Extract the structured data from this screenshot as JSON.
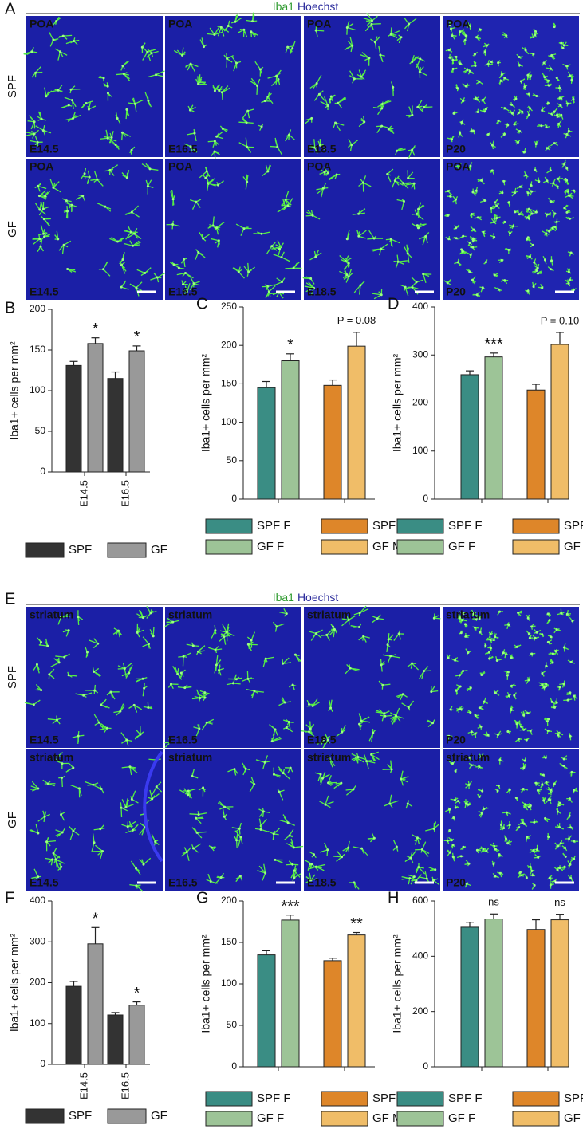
{
  "figure": {
    "image_panels": [
      {
        "letter": "A",
        "stain": [
          "Iba1",
          "Hoechst"
        ],
        "rows": [
          "SPF",
          "GF"
        ],
        "region": "POA",
        "ages": [
          "E14.5",
          "E16.5",
          "E18.5",
          "P20"
        ]
      },
      {
        "letter": "E",
        "stain": [
          "Iba1",
          "Hoechst"
        ],
        "rows": [
          "SPF",
          "GF"
        ],
        "region": "striatum",
        "ages": [
          "E14.5",
          "E16.5",
          "E18.5",
          "P20"
        ]
      }
    ]
  },
  "chart_data": [
    {
      "type": "bar",
      "letter": "B",
      "ylabel": "Iba1+ cells per mm²",
      "categories": [
        "E14.5",
        "E16.5"
      ],
      "series": [
        {
          "name": "SPF",
          "color": "#333333",
          "values": [
            131,
            115
          ],
          "error": [
            5,
            8
          ]
        },
        {
          "name": "GF",
          "color": "#999999",
          "values": [
            158,
            149
          ],
          "error": [
            7,
            6
          ],
          "annotations": [
            "*",
            "*"
          ]
        }
      ],
      "ylim": [
        0,
        200
      ],
      "yticks": [
        0,
        50,
        100,
        150,
        200
      ]
    },
    {
      "type": "bar",
      "letter": "C",
      "ylabel": "Iba1+ cells per mm²",
      "categories": [
        null,
        null
      ],
      "series": [
        {
          "name": "SPF F",
          "color": "#3a8d84",
          "values": [
            145,
            null
          ],
          "error": [
            8,
            null
          ]
        },
        {
          "name": "GF F",
          "color": "#9dc497",
          "values": [
            180,
            null
          ],
          "error": [
            9,
            null
          ],
          "annotations": [
            "*",
            null
          ]
        },
        {
          "name": "SPF M",
          "color": "#de8629",
          "values": [
            null,
            148
          ],
          "error": [
            null,
            7
          ]
        },
        {
          "name": "GF M",
          "color": "#f0bd68",
          "values": [
            null,
            199
          ],
          "error": [
            null,
            18
          ],
          "annotations": [
            null,
            "P = 0.08"
          ]
        }
      ],
      "ylim": [
        0,
        250
      ],
      "yticks": [
        0,
        50,
        100,
        150,
        200,
        250
      ]
    },
    {
      "type": "bar",
      "letter": "D",
      "ylabel": "Iba1+ cells per mm²",
      "categories": [
        null,
        null
      ],
      "series": [
        {
          "name": "SPF F",
          "color": "#3a8d84",
          "values": [
            259,
            null
          ],
          "error": [
            8,
            null
          ]
        },
        {
          "name": "GF F",
          "color": "#9dc497",
          "values": [
            296,
            null
          ],
          "error": [
            8,
            null
          ],
          "annotations": [
            "***",
            null
          ]
        },
        {
          "name": "SPF M",
          "color": "#de8629",
          "values": [
            null,
            227
          ],
          "error": [
            null,
            12
          ]
        },
        {
          "name": "GF M",
          "color": "#f0bd68",
          "values": [
            null,
            322
          ],
          "error": [
            null,
            25
          ],
          "annotations": [
            null,
            "P = 0.10"
          ]
        }
      ],
      "ylim": [
        0,
        400
      ],
      "yticks": [
        0,
        100,
        200,
        300,
        400
      ]
    },
    {
      "type": "bar",
      "letter": "F",
      "ylabel": "Iba1+ cells per mm²",
      "categories": [
        "E14.5",
        "E16.5"
      ],
      "series": [
        {
          "name": "SPF",
          "color": "#333333",
          "values": [
            191,
            121
          ],
          "error": [
            12,
            6
          ]
        },
        {
          "name": "GF",
          "color": "#999999",
          "values": [
            295,
            145
          ],
          "error": [
            40,
            8
          ],
          "annotations": [
            "*",
            "*"
          ]
        }
      ],
      "ylim": [
        0,
        400
      ],
      "yticks": [
        0,
        100,
        200,
        300,
        400
      ]
    },
    {
      "type": "bar",
      "letter": "G",
      "ylabel": "Iba1+ cells per mm²",
      "categories": [
        null,
        null
      ],
      "series": [
        {
          "name": "SPF F",
          "color": "#3a8d84",
          "values": [
            135,
            null
          ],
          "error": [
            5,
            null
          ]
        },
        {
          "name": "GF F",
          "color": "#9dc497",
          "values": [
            177,
            null
          ],
          "error": [
            6,
            null
          ],
          "annotations": [
            "***",
            null
          ]
        },
        {
          "name": "SPF M",
          "color": "#de8629",
          "values": [
            null,
            128
          ],
          "error": [
            null,
            3
          ]
        },
        {
          "name": "GF M",
          "color": "#f0bd68",
          "values": [
            null,
            159
          ],
          "error": [
            null,
            3
          ],
          "annotations": [
            null,
            "**"
          ]
        }
      ],
      "ylim": [
        0,
        200
      ],
      "yticks": [
        0,
        50,
        100,
        150,
        200
      ]
    },
    {
      "type": "bar",
      "letter": "H",
      "ylabel": "Iba1+ cells per mm²",
      "categories": [
        null,
        null
      ],
      "series": [
        {
          "name": "SPF F",
          "color": "#3a8d84",
          "values": [
            505,
            null
          ],
          "error": [
            18,
            null
          ]
        },
        {
          "name": "GF F",
          "color": "#9dc497",
          "values": [
            535,
            null
          ],
          "error": [
            18,
            null
          ],
          "annotations": [
            "ns",
            null
          ]
        },
        {
          "name": "SPF M",
          "color": "#de8629",
          "values": [
            null,
            497
          ],
          "error": [
            null,
            35
          ]
        },
        {
          "name": "GF M",
          "color": "#f0bd68",
          "values": [
            null,
            532
          ],
          "error": [
            null,
            20
          ],
          "annotations": [
            null,
            "ns"
          ]
        }
      ],
      "ylim": [
        0,
        600
      ],
      "yticks": [
        0,
        200,
        400,
        600
      ]
    }
  ]
}
